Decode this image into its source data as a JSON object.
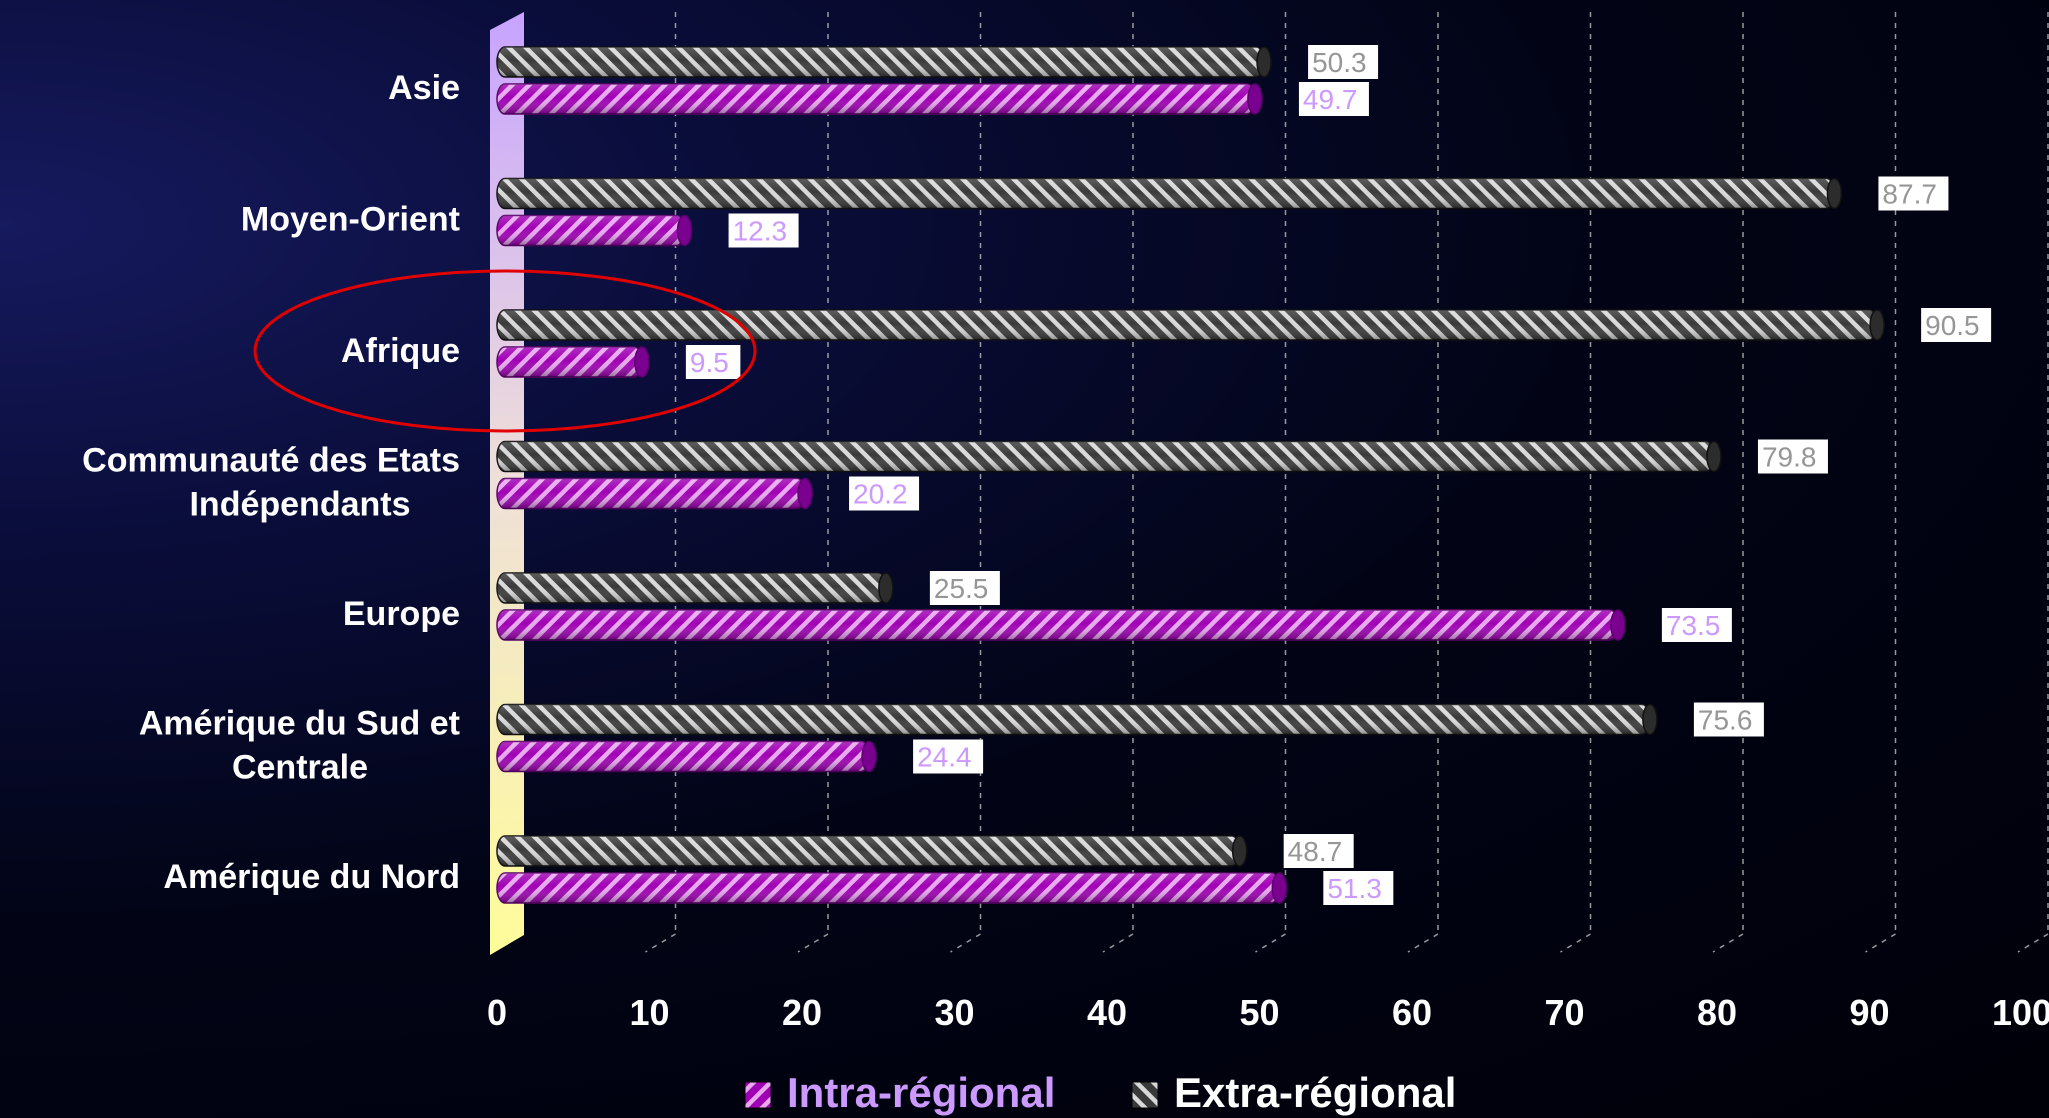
{
  "chart_data": {
    "type": "bar",
    "orientation": "horizontal",
    "categories": [
      "Amérique du Nord",
      "Amérique du Sud et Centrale",
      "Europe",
      "Communauté des Etats Indépendants",
      "Afrique",
      "Moyen-Orient",
      "Asie"
    ],
    "category_lines": [
      [
        "Amérique du Nord"
      ],
      [
        "Amérique du Sud et",
        "Centrale"
      ],
      [
        "Europe"
      ],
      [
        "Communauté des Etats",
        "Indépendants"
      ],
      [
        "Afrique"
      ],
      [
        "Moyen-Orient"
      ],
      [
        "Asie"
      ]
    ],
    "series": [
      {
        "name": "Intra-régional",
        "color": "#b000c0",
        "label_color": "#cc99ff",
        "values": [
          51.3,
          24.4,
          73.5,
          20.2,
          9.5,
          12.3,
          49.7
        ],
        "labels": [
          "51.3",
          "24.4",
          "73.5",
          "20.2",
          "9.5",
          "12.3",
          "49.7"
        ]
      },
      {
        "name": "Extra-régional",
        "color": "#555555",
        "label_color": "#969696",
        "values": [
          48.7,
          75.6,
          25.5,
          79.8,
          90.5,
          87.7,
          50.3
        ],
        "labels": [
          "48.7",
          "75.6",
          "25.5",
          "79.8",
          "90.5",
          "87.7",
          "50.3"
        ]
      }
    ],
    "xlim": [
      0,
      100
    ],
    "ticks": [
      "0",
      "10",
      "20",
      "30",
      "40",
      "50",
      "60",
      "70",
      "80",
      "90",
      "100"
    ],
    "grid": true,
    "legend_position": "bottom",
    "highlight": "Afrique",
    "highlight_color": "#e00000",
    "xlabel": "",
    "ylabel": "",
    "title": ""
  }
}
